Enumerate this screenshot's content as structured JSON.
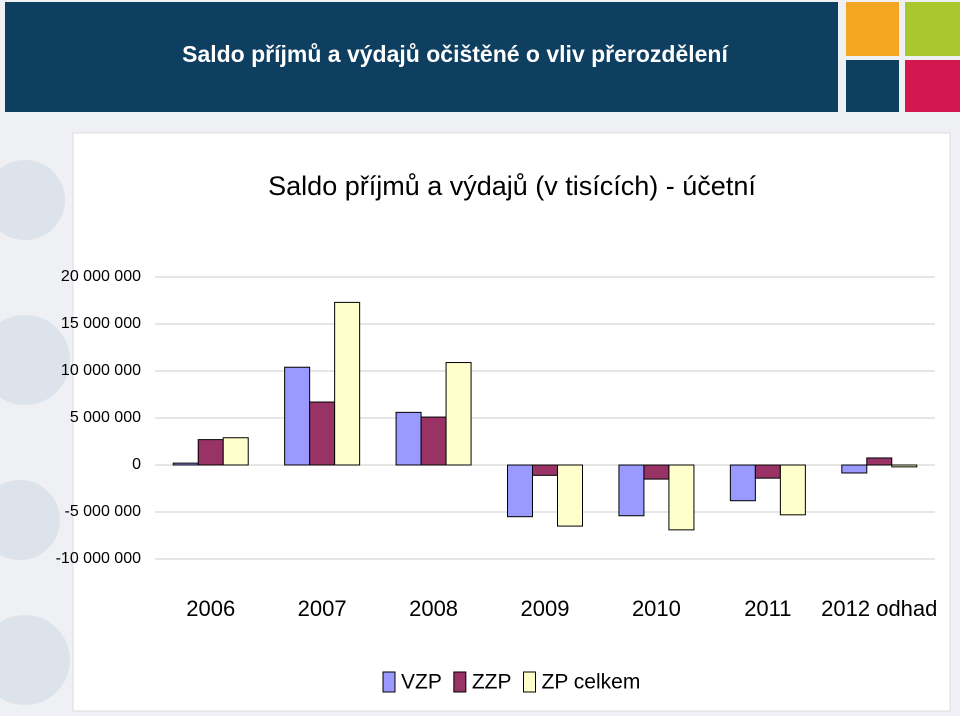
{
  "header": {
    "title": "Saldo příjmů a výdajů očištěné o vliv přerozdělení"
  },
  "chart_data": {
    "type": "bar",
    "title": "Saldo příjmů a výdajů (v tisících) - účetní",
    "categories": [
      "2006",
      "2007",
      "2008",
      "2009",
      "2010",
      "2011",
      "2012 odhad"
    ],
    "series": [
      {
        "name": "VZP",
        "color": "#9999ff",
        "values": [
          200000,
          10400000,
          5600000,
          -5500000,
          -5400000,
          -3800000,
          -850000
        ]
      },
      {
        "name": "ZZP",
        "color": "#993366",
        "values": [
          2700000,
          6700000,
          5100000,
          -1100000,
          -1500000,
          -1400000,
          750000
        ]
      },
      {
        "name": "ZP celkem",
        "color": "#ffffcc",
        "values": [
          2900000,
          17300000,
          10900000,
          -6500000,
          -6900000,
          -5300000,
          -200000
        ]
      }
    ],
    "ylim": [
      -10000000,
      20000000
    ],
    "yticks": [
      {
        "value": -10000000,
        "label": "-10 000 000"
      },
      {
        "value": -5000000,
        "label": "-5 000 000"
      },
      0,
      {
        "value": 5000000,
        "label": "5 000 000"
      },
      {
        "value": 10000000,
        "label": "10 000 000"
      },
      {
        "value": 15000000,
        "label": "15 000 000"
      },
      {
        "value": 20000000,
        "label": "20 000 000"
      }
    ],
    "grid": true,
    "legend": "bottom"
  }
}
